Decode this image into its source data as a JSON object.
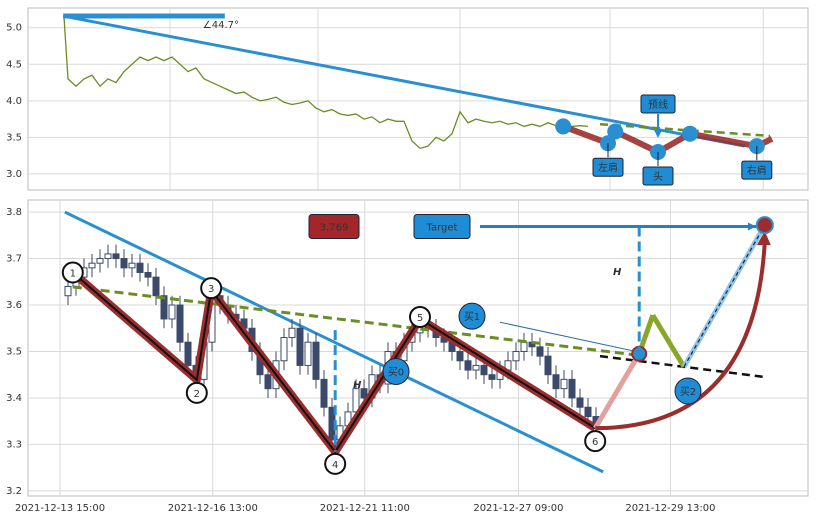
{
  "chart_data": [
    {
      "type": "line",
      "xlim": [
        0,
        97.5
      ],
      "ylim": [
        2.78,
        5.27
      ],
      "yticks": [
        {
          "value": 3,
          "label": "3.0"
        },
        3.5,
        {
          "value": 4,
          "label": "4.0"
        },
        4.5,
        {
          "value": 5,
          "label": "5.0"
        }
      ],
      "xgrid": [
        17.75,
        36.25,
        54,
        72.75,
        91.9
      ],
      "grid": true,
      "series": [
        {
          "color": "#6b8e23",
          "x": [
            4.5,
            5,
            6,
            7,
            8,
            9,
            10,
            11,
            12,
            13,
            14,
            15,
            16,
            17,
            18,
            19,
            20,
            21,
            22,
            23,
            24,
            25,
            26,
            27,
            28,
            29,
            30,
            31,
            32,
            33,
            34,
            35,
            36,
            37,
            38,
            39,
            40,
            41,
            42,
            43,
            44,
            45,
            46,
            47,
            48,
            49,
            50,
            51,
            52,
            53,
            54,
            55,
            56,
            57,
            58,
            59,
            60,
            61,
            62,
            63,
            64,
            65,
            66,
            67,
            68,
            69,
            70
          ],
          "values": [
            5.15,
            4.3,
            4.2,
            4.3,
            4.35,
            4.2,
            4.3,
            4.25,
            4.4,
            4.5,
            4.6,
            4.55,
            4.6,
            4.55,
            4.6,
            4.5,
            4.4,
            4.45,
            4.3,
            4.25,
            4.2,
            4.15,
            4.1,
            4.12,
            4.05,
            4.0,
            4.02,
            4.05,
            3.98,
            3.95,
            3.97,
            4.0,
            3.9,
            3.85,
            3.88,
            3.82,
            3.8,
            3.82,
            3.75,
            3.78,
            3.7,
            3.75,
            3.72,
            3.72,
            3.45,
            3.35,
            3.38,
            3.5,
            3.45,
            3.55,
            3.85,
            3.7,
            3.75,
            3.72,
            3.7,
            3.72,
            3.68,
            3.7,
            3.65,
            3.68,
            3.65,
            3.7,
            3.66,
            3.68,
            3.65,
            3.66,
            3.65
          ]
        }
      ],
      "trend": {
        "color": "#2a8fd0",
        "x": [
          4.4,
          89.6
        ],
        "values": [
          5.16,
          3.38
        ]
      },
      "angle_arm": {
        "x": [
          4.4,
          24.6
        ],
        "values": [
          5.16,
          5.16
        ]
      },
      "angle_label": "∠44.7°",
      "neckline": {
        "color": "#6b8e23",
        "x": [
          71.5,
          92.75
        ],
        "values": [
          3.68,
          3.52
        ]
      },
      "pattern": {
        "color": "#9b2d2d",
        "x": [
          66.9,
          72.5,
          73.4,
          78.75,
          82.75,
          91.1,
          93
        ],
        "values": [
          3.65,
          3.42,
          3.58,
          3.3,
          3.55,
          3.38,
          3.48
        ]
      },
      "shoulders": [
        {
          "label": "左肩",
          "x": 72.5,
          "value": 3.42
        },
        {
          "label": "头",
          "x": 78.75,
          "value": 3.3
        },
        {
          "label": "右肩",
          "x": 91.1,
          "value": 3.38
        }
      ],
      "neck_label": "预线"
    },
    {
      "type": "candlestick",
      "xlim": [
        0,
        97.5
      ],
      "ylim": [
        3.189,
        3.826
      ],
      "yticks": [
        3.2,
        3.3,
        3.4,
        3.5,
        3.6,
        3.7,
        3.8
      ],
      "xticks": [
        {
          "value": 4,
          "label": "2021-12-13 15:00"
        },
        {
          "value": 23.1,
          "label": "2021-12-16 13:00"
        },
        {
          "value": 42.1,
          "label": "2021-12-21 11:00"
        },
        {
          "value": 61.3,
          "label": "2021-12-27 09:00"
        },
        {
          "value": 80.3,
          "label": "2021-12-29 13:00"
        }
      ],
      "grid": true,
      "colors": {
        "up": "#ffffff",
        "down": "#3b4a6b"
      },
      "x": [
        5,
        6,
        7,
        8,
        9,
        10,
        11,
        12,
        13,
        14,
        15,
        16,
        17,
        18,
        19,
        20,
        21,
        22,
        23,
        24,
        25,
        26,
        27,
        28,
        29,
        30,
        31,
        32,
        33,
        34,
        35,
        36,
        37,
        38,
        39,
        40,
        41,
        42,
        43,
        44,
        45,
        46,
        47,
        48,
        49,
        50,
        51,
        52,
        53,
        54,
        55,
        56,
        57,
        58,
        59,
        60,
        61,
        62,
        63,
        64,
        65,
        66,
        67,
        68,
        69,
        70,
        71
      ],
      "open": [
        3.62,
        3.64,
        3.66,
        3.68,
        3.69,
        3.7,
        3.71,
        3.7,
        3.68,
        3.69,
        3.67,
        3.66,
        3.62,
        3.57,
        3.6,
        3.52,
        3.47,
        3.44,
        3.52,
        3.62,
        3.6,
        3.58,
        3.57,
        3.55,
        3.5,
        3.45,
        3.42,
        3.48,
        3.53,
        3.55,
        3.47,
        3.52,
        3.44,
        3.38,
        3.31,
        3.34,
        3.37,
        3.42,
        3.4,
        3.45,
        3.43,
        3.5,
        3.48,
        3.52,
        3.54,
        3.56,
        3.55,
        3.53,
        3.52,
        3.5,
        3.48,
        3.46,
        3.47,
        3.45,
        3.44,
        3.46,
        3.48,
        3.5,
        3.52,
        3.51,
        3.49,
        3.45,
        3.42,
        3.44,
        3.4,
        3.38,
        3.36
      ],
      "high": [
        3.66,
        3.68,
        3.7,
        3.71,
        3.72,
        3.73,
        3.73,
        3.72,
        3.71,
        3.71,
        3.69,
        3.68,
        3.64,
        3.62,
        3.62,
        3.54,
        3.49,
        3.54,
        3.64,
        3.64,
        3.62,
        3.6,
        3.59,
        3.57,
        3.52,
        3.47,
        3.5,
        3.55,
        3.57,
        3.57,
        3.54,
        3.54,
        3.46,
        3.4,
        3.36,
        3.39,
        3.44,
        3.44,
        3.47,
        3.47,
        3.52,
        3.52,
        3.54,
        3.56,
        3.58,
        3.58,
        3.57,
        3.55,
        3.54,
        3.52,
        3.5,
        3.49,
        3.49,
        3.47,
        3.48,
        3.5,
        3.52,
        3.54,
        3.54,
        3.53,
        3.51,
        3.47,
        3.46,
        3.46,
        3.42,
        3.4,
        3.38
      ],
      "low": [
        3.6,
        3.62,
        3.64,
        3.66,
        3.67,
        3.68,
        3.68,
        3.66,
        3.66,
        3.65,
        3.64,
        3.6,
        3.55,
        3.55,
        3.5,
        3.45,
        3.42,
        3.42,
        3.5,
        3.58,
        3.56,
        3.55,
        3.53,
        3.48,
        3.43,
        3.4,
        3.4,
        3.46,
        3.51,
        3.45,
        3.45,
        3.42,
        3.36,
        3.29,
        3.29,
        3.32,
        3.35,
        3.38,
        3.38,
        3.41,
        3.41,
        3.46,
        3.46,
        3.5,
        3.52,
        3.53,
        3.51,
        3.5,
        3.48,
        3.46,
        3.44,
        3.44,
        3.43,
        3.42,
        3.42,
        3.44,
        3.46,
        3.48,
        3.49,
        3.47,
        3.43,
        3.4,
        3.4,
        3.38,
        3.36,
        3.34,
        3.32
      ],
      "close": [
        3.64,
        3.66,
        3.68,
        3.69,
        3.7,
        3.71,
        3.7,
        3.68,
        3.69,
        3.67,
        3.66,
        3.62,
        3.57,
        3.6,
        3.52,
        3.47,
        3.44,
        3.52,
        3.62,
        3.6,
        3.58,
        3.57,
        3.55,
        3.5,
        3.45,
        3.42,
        3.48,
        3.53,
        3.55,
        3.47,
        3.52,
        3.44,
        3.38,
        3.31,
        3.34,
        3.37,
        3.42,
        3.4,
        3.45,
        3.43,
        3.5,
        3.48,
        3.52,
        3.54,
        3.56,
        3.55,
        3.53,
        3.52,
        3.5,
        3.48,
        3.46,
        3.47,
        3.45,
        3.44,
        3.46,
        3.48,
        3.5,
        3.52,
        3.51,
        3.49,
        3.45,
        3.42,
        3.44,
        3.4,
        3.38,
        3.36,
        3.34
      ],
      "trend": {
        "color": "#2a8fd0",
        "x": [
          4.6,
          71.9
        ],
        "values": [
          3.8,
          3.241
        ]
      },
      "neckline": {
        "color": "#6b8e23",
        "x": [
          5.6,
          76.25
        ],
        "values": [
          3.639,
          3.492
        ]
      },
      "forecast_line": {
        "x": [
          71.5,
          92.1
        ],
        "values": [
          3.49,
          3.445
        ]
      },
      "thin_line": {
        "x": [
          59,
          76.25
        ],
        "values": [
          3.563,
          3.499
        ]
      },
      "pivots": {
        "color": "#9b2d2d",
        "labels": [
          "1",
          "2",
          "3",
          "4",
          "5",
          "6"
        ],
        "x": [
          5.6,
          21.1,
          22.9,
          38.4,
          49,
          70.9
        ],
        "values": [
          3.67,
          3.439,
          3.632,
          3.284,
          3.57,
          3.335
        ]
      },
      "projection": {
        "x": [
          70.9,
          76.4,
          78.1,
          82,
          92.1
        ],
        "values": [
          3.335,
          3.495,
          3.578,
          3.467,
          3.772
        ]
      },
      "h_marks": [
        {
          "label": "H",
          "x": 38.4,
          "values": [
            3.546,
            3.284
          ]
        },
        {
          "label": "H",
          "x": 76.4,
          "values": [
            3.769,
            3.495
          ]
        }
      ],
      "buys": [
        {
          "label": "买0",
          "x": 46,
          "value": 3.457
        },
        {
          "label": "买1",
          "x": 55.5,
          "value": 3.576
        },
        {
          "label": "买2",
          "x": 82.5,
          "value": 3.415
        }
      ],
      "target": {
        "label": "Target",
        "value": 3.769,
        "x": [
          56.5,
          91
        ]
      }
    }
  ]
}
